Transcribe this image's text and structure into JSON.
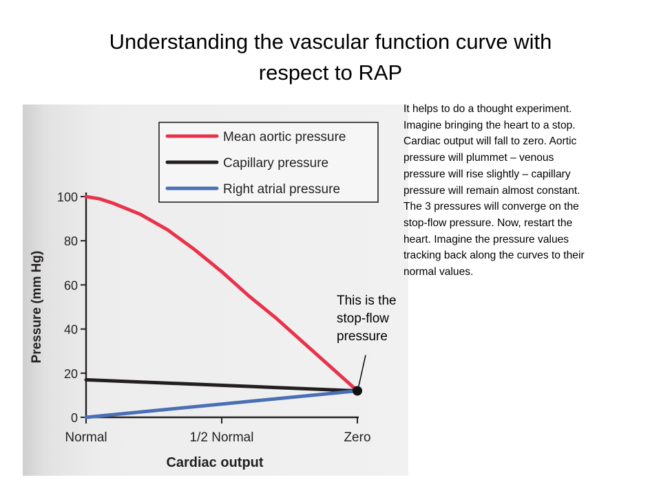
{
  "slide": {
    "title_line1": "Understanding the vascular function curve with",
    "title_line2": "respect to RAP"
  },
  "notes": [
    "It helps to do a thought experiment.",
    "Imagine bringing the heart to a stop.",
    "Cardiac output will fall to zero. Aortic",
    "pressure will plummet – venous",
    "pressure will rise slightly – capillary",
    "pressure will remain almost constant.",
    "The 3 pressures will converge on the",
    "stop-flow pressure. Now, restart the",
    "heart.  Imagine the pressure values",
    "tracking back along the curves to their",
    "normal values."
  ],
  "callout": [
    "This is the",
    "stop-flow",
    "pressure"
  ],
  "colors": {
    "aortic": "#e8334a",
    "capillary": "#231f20",
    "atrial": "#4a6fb5",
    "page_paper": "#ececec"
  },
  "chart_data": {
    "type": "line",
    "xlabel": "Cardiac output",
    "ylabel": "Pressure (mm Hg)",
    "x_categories": [
      "Normal",
      "1/2 Normal",
      "Zero"
    ],
    "x_domain": [
      0,
      1
    ],
    "ylim": [
      0,
      100
    ],
    "yticks": [
      0,
      20,
      40,
      60,
      80,
      100
    ],
    "legend_position": "top-right",
    "grid": false,
    "series": [
      {
        "name": "Mean aortic pressure",
        "color": "#e8334a",
        "x": [
          0,
          0.05,
          0.1,
          0.2,
          0.3,
          0.4,
          0.5,
          0.6,
          0.7,
          0.8,
          0.9,
          1.0
        ],
        "y": [
          100,
          99,
          97,
          92,
          85,
          76,
          66,
          55,
          45,
          34,
          23,
          12
        ]
      },
      {
        "name": "Capillary pressure",
        "color": "#231f20",
        "x": [
          0,
          1.0
        ],
        "y": [
          17,
          12
        ]
      },
      {
        "name": "Right atrial pressure",
        "color": "#4a6fb5",
        "x": [
          0,
          1.0
        ],
        "y": [
          0,
          12
        ]
      }
    ],
    "stop_flow_point": {
      "x": 1.0,
      "y": 12
    }
  }
}
